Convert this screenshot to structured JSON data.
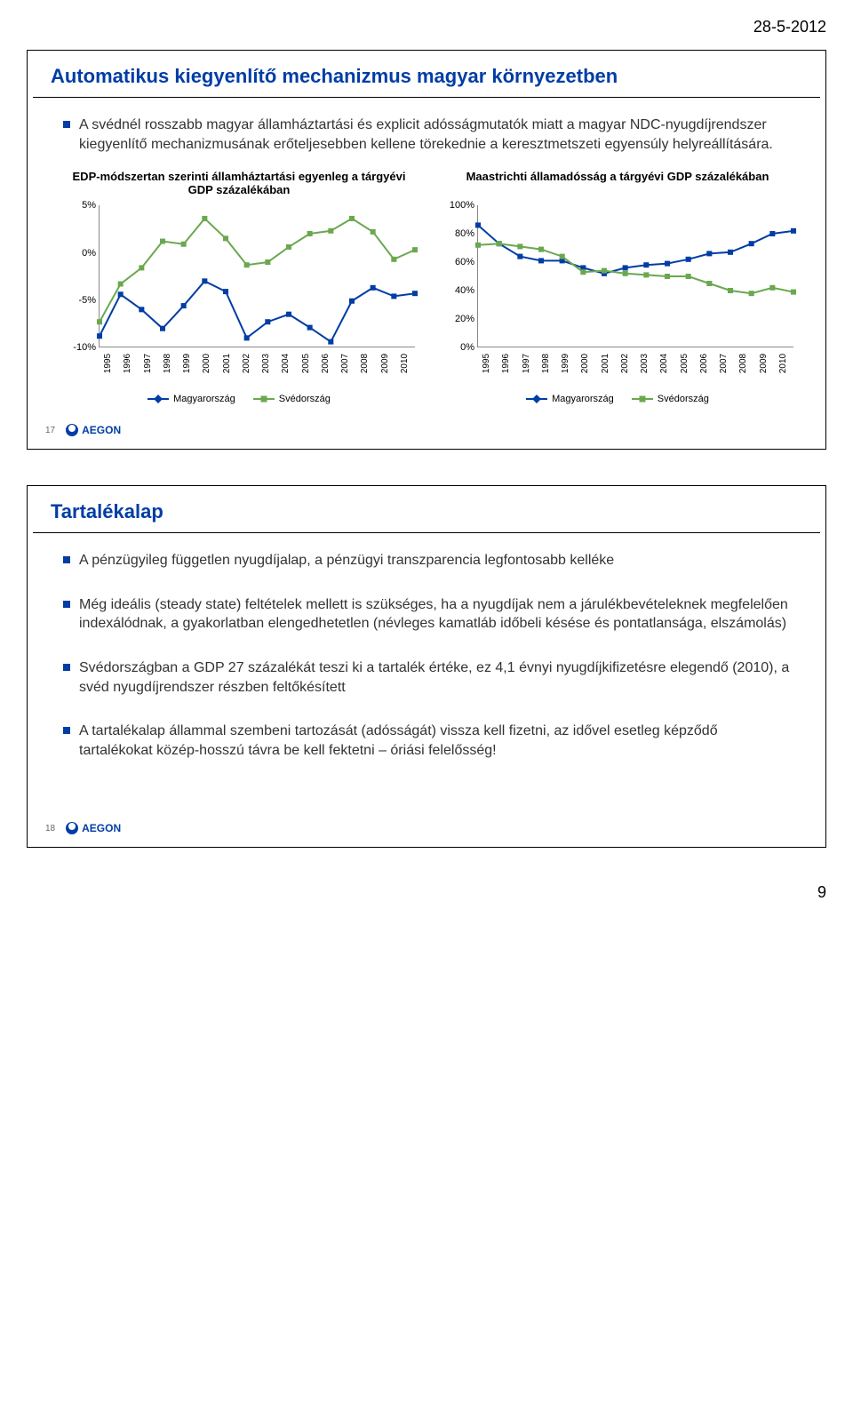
{
  "date_header": "28-5-2012",
  "page_number": "9",
  "slide1": {
    "number": "17",
    "title": "Automatikus kiegyenlítő mechanizmus magyar környezetben",
    "bullet": "A svédnél rosszabb magyar államháztartási és explicit adósságmutatók miatt a magyar NDC-nyugdíjrendszer kiegyenlítő mechanizmusának erőteljesebben kellene törekednie a keresztmetszeti egyensúly helyreállítására.",
    "chart_left": {
      "title": "EDP-módszertan szerinti államháztartási egyenleg a tárgyévi GDP százalékában",
      "years": [
        "1995",
        "1996",
        "1997",
        "1998",
        "1999",
        "2000",
        "2001",
        "2002",
        "2003",
        "2004",
        "2005",
        "2006",
        "2007",
        "2008",
        "2009",
        "2010"
      ],
      "yticks": [
        "5%",
        "0%",
        "-5%",
        "-10%"
      ],
      "ymin": -10,
      "ymax": 5,
      "series": {
        "hungary": {
          "label": "Magyarország",
          "color": "#003da5",
          "marker_color": "#003da5",
          "values": [
            -8.8,
            -4.4,
            -6.0,
            -8.0,
            -5.6,
            -3.0,
            -4.1,
            -9.0,
            -7.3,
            -6.5,
            -7.9,
            -9.4,
            -5.1,
            -3.7,
            -4.6,
            -4.3
          ]
        },
        "sweden": {
          "label": "Svédország",
          "color": "#6aa84f",
          "marker_color": "#6aa84f",
          "values": [
            -7.3,
            -3.3,
            -1.6,
            1.2,
            0.9,
            3.6,
            1.5,
            -1.3,
            -1.0,
            0.6,
            2.0,
            2.3,
            3.6,
            2.2,
            -0.7,
            0.3
          ]
        }
      }
    },
    "chart_right": {
      "title": "Maastrichti államadósság a tárgyévi GDP százalékában",
      "years": [
        "1995",
        "1996",
        "1997",
        "1998",
        "1999",
        "2000",
        "2001",
        "2002",
        "2003",
        "2004",
        "2005",
        "2006",
        "2007",
        "2008",
        "2009",
        "2010"
      ],
      "yticks": [
        "100%",
        "80%",
        "60%",
        "40%",
        "20%",
        "0%"
      ],
      "ymin": 0,
      "ymax": 100,
      "series": {
        "hungary": {
          "label": "Magyarország",
          "color": "#003da5",
          "marker_color": "#003da5",
          "values": [
            86,
            73,
            64,
            61,
            61,
            56,
            52,
            56,
            58,
            59,
            62,
            66,
            67,
            73,
            80,
            82
          ]
        },
        "sweden": {
          "label": "Svédország",
          "color": "#6aa84f",
          "marker_color": "#6aa84f",
          "values": [
            72,
            73,
            71,
            69,
            64,
            53,
            54,
            52,
            51,
            50,
            50,
            45,
            40,
            38,
            42,
            39
          ]
        }
      }
    }
  },
  "slide2": {
    "number": "18",
    "title": "Tartalékalap",
    "bullets": [
      "A pénzügyileg független nyugdíjalap, a pénzügyi transzparencia legfontosabb kelléke",
      "Még ideális (steady state) feltételek mellett is szükséges, ha a nyugdíjak nem a járulékbevételeknek megfelelően indexálódnak, a gyakorlatban elengedhetetlen (névleges kamatláb időbeli késése és pontatlansága, elszámolás)",
      "Svédországban a GDP 27 százalékát teszi ki a tartalék értéke, ez 4,1 évnyi nyugdíjkifizetésre elegendő (2010), a svéd nyugdíjrendszer részben feltőkésített",
      "A tartalékalap állammal szembeni tartozását (adósságát) vissza kell fizetni, az idővel esetleg képződő tartalékokat közép-hosszú távra be kell fektetni – óriási felelősség!"
    ]
  },
  "logo_text": "AEGON",
  "colors": {
    "title": "#003da5",
    "bullet_square": "#003da5",
    "hungary": "#003da5",
    "sweden": "#6aa84f"
  }
}
